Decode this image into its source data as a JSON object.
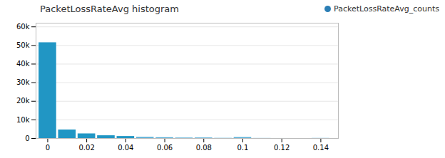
{
  "chart_data": {
    "type": "bar",
    "title": "PacketLossRateAvg histogram",
    "x": [
      0.0,
      0.01,
      0.02,
      0.03,
      0.04,
      0.05,
      0.06,
      0.07,
      0.08,
      0.09,
      0.1,
      0.11,
      0.12,
      0.13,
      0.14
    ],
    "series": [
      {
        "name": "PacketLossRateAvg_counts",
        "color": "#2b7eb5",
        "colors": [
          "#2196c4",
          "#2196c4",
          "#2196c4",
          "#2196c4",
          "#2196c4",
          "#5ab0d8",
          "#5ab0d8",
          "#5ab0d8",
          "#5ab0d8",
          "#90cce8",
          "#5ab0d8",
          "#90cce8",
          "#b8ddf0",
          "#b8ddf0",
          "#90cce8"
        ],
        "values": [
          51500,
          4600,
          2500,
          1500,
          1100,
          650,
          450,
          280,
          320,
          180,
          550,
          90,
          50,
          30,
          120
        ]
      }
    ],
    "xlim": [
      -0.006,
      0.149
    ],
    "xticks": [
      0,
      0.02,
      0.04,
      0.06,
      0.08,
      0.1,
      0.12,
      0.14
    ],
    "ylim": [
      0,
      62000
    ],
    "yticks": [
      0,
      {
        "value": 10000,
        "label": "10k"
      },
      {
        "value": 20000,
        "label": "20k"
      },
      {
        "value": 30000,
        "label": "30k"
      },
      {
        "value": 40000,
        "label": "40k"
      },
      {
        "value": 50000,
        "label": "50k"
      },
      {
        "value": 60000,
        "label": "60k"
      }
    ],
    "grid": true,
    "legend": "upper right"
  }
}
